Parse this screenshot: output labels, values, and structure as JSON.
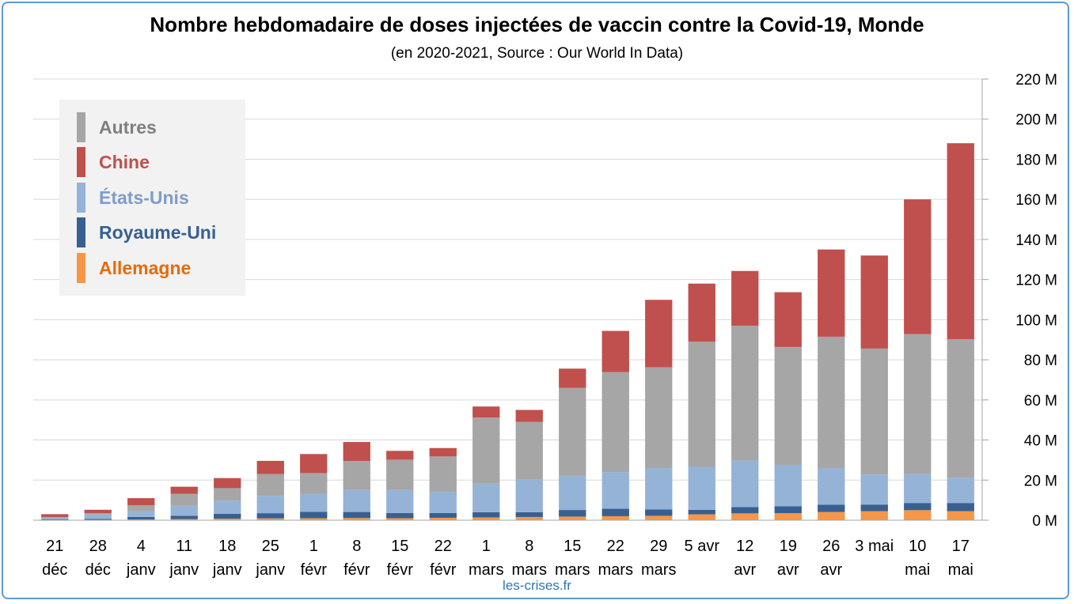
{
  "chart_data": {
    "type": "bar",
    "stacked": true,
    "title": "Nombre hebdomadaire de doses injectées de vaccin contre la Covid-19, Monde",
    "subtitle": "(en 2020-2021, Source : Our World In Data)",
    "source_label": "les-crises.fr",
    "categories": [
      [
        "21",
        "déc"
      ],
      [
        "28",
        "déc"
      ],
      [
        "4",
        "janv"
      ],
      [
        "11",
        "janv"
      ],
      [
        "18",
        "janv"
      ],
      [
        "25",
        "janv"
      ],
      [
        "1",
        "févr"
      ],
      [
        "8",
        "févr"
      ],
      [
        "15",
        "févr"
      ],
      [
        "22",
        "févr"
      ],
      [
        "1",
        "mars"
      ],
      [
        "8",
        "mars"
      ],
      [
        "15",
        "mars"
      ],
      [
        "22",
        "mars"
      ],
      [
        "29",
        "mars"
      ],
      [
        "5 avr",
        ""
      ],
      [
        "12",
        "avr"
      ],
      [
        "19",
        "avr"
      ],
      [
        "26",
        "avr"
      ],
      [
        "3 mai",
        ""
      ],
      [
        "10",
        "mai"
      ],
      [
        "17",
        "mai"
      ]
    ],
    "series": [
      {
        "name": "Allemagne",
        "color": "#f79646",
        "values": [
          0.1,
          0.2,
          0.4,
          0.6,
          0.8,
          0.9,
          1.0,
          1.1,
          1.0,
          1.2,
          1.4,
          1.6,
          1.8,
          2.0,
          2.2,
          2.9,
          3.4,
          3.5,
          4.1,
          4.5,
          5.0,
          4.5
        ]
      },
      {
        "name": "Royaume-Uni",
        "color": "#376092",
        "values": [
          0.3,
          0.4,
          1.2,
          1.6,
          2.4,
          2.6,
          3.2,
          3.0,
          2.6,
          2.4,
          2.6,
          2.4,
          3.3,
          3.7,
          3.2,
          2.3,
          3.1,
          3.5,
          3.6,
          3.3,
          3.6,
          4.1
        ]
      },
      {
        "name": "États-Unis",
        "color": "#95b3d7",
        "values": [
          0.8,
          2.2,
          2.9,
          5.0,
          6.6,
          8.6,
          9.0,
          11.0,
          11.6,
          10.6,
          14.2,
          16.2,
          17.0,
          18.3,
          20.6,
          21.4,
          23.3,
          20.6,
          18.3,
          15.0,
          14.4,
          12.6
        ]
      },
      {
        "name": "Autres",
        "color": "#a6a6a6",
        "values": [
          0.4,
          0.7,
          3.0,
          6.0,
          6.2,
          10.9,
          10.3,
          14.4,
          15.0,
          17.6,
          33.0,
          28.8,
          43.9,
          49.9,
          50.3,
          62.4,
          67.2,
          58.8,
          65.5,
          62.8,
          69.8,
          69.1
        ]
      },
      {
        "name": "Chine",
        "color": "#c0504d",
        "values": [
          1.4,
          1.7,
          3.5,
          3.5,
          5.0,
          6.6,
          9.5,
          9.5,
          4.4,
          4.2,
          5.5,
          6.0,
          9.6,
          20.5,
          33.6,
          29.0,
          27.3,
          27.3,
          43.5,
          46.4,
          67.2,
          97.7
        ]
      }
    ],
    "legend": [
      {
        "name": "Autres",
        "color": "#a6a6a6",
        "text_color": "#7f7f7f"
      },
      {
        "name": "Chine",
        "color": "#c0504d",
        "text_color": "#c0504d"
      },
      {
        "name": "États-Unis",
        "color": "#95b3d7",
        "text_color": "#7f9ccc"
      },
      {
        "name": "Royaume-Uni",
        "color": "#376092",
        "text_color": "#376092"
      },
      {
        "name": "Allemagne",
        "color": "#f79646",
        "text_color": "#e46c0a"
      }
    ],
    "ylim": [
      0,
      220
    ],
    "yticks": [
      0,
      20,
      40,
      60,
      80,
      100,
      120,
      140,
      160,
      180,
      200,
      220
    ],
    "ytick_labels": [
      "0 M",
      "20 M",
      "40 M",
      "60 M",
      "80 M",
      "100 M",
      "120 M",
      "140 M",
      "160 M",
      "180 M",
      "200 M",
      "220 M"
    ],
    "y_axis_side": "right",
    "grid": true,
    "legend_position": "top-left"
  }
}
